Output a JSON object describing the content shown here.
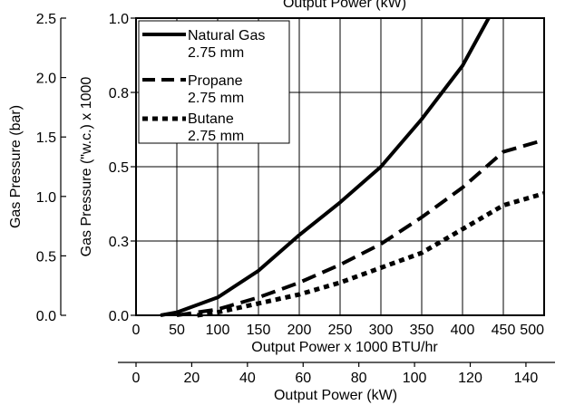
{
  "chart_data": {
    "type": "line",
    "title": "Output Power (kW)",
    "x_unit": "Output Power x 1000 BTU/hr",
    "xlabel_btu": "Output Power x 1000 BTU/hr",
    "xlabel_kw": "Output Power (kW)",
    "ylabel_wc": "Gas Pressure (\"w.c.) x 1000",
    "ylabel_bar": "Gas Pressure (bar)",
    "xlim": [
      0,
      500
    ],
    "ylim": [
      0,
      1.0
    ],
    "x_ticks": [
      "0",
      "50",
      "100",
      "150",
      "200",
      "250",
      "300",
      "350",
      "400",
      "450",
      "500"
    ],
    "kw_ticks": [
      "0",
      "20",
      "40",
      "60",
      "80",
      "100",
      "120",
      "140"
    ],
    "y_ticks_wc": [
      "0.0",
      "0.3",
      "0.5",
      "0.8",
      "1.0"
    ],
    "y_ticks_bar": [
      "0.0",
      "0.5",
      "1.0",
      "1.5",
      "2.0",
      "2.5"
    ],
    "grid": true,
    "legend_position": "top-left",
    "series": [
      {
        "name": "Natural Gas",
        "sub": "2.75 mm",
        "style": "solid",
        "x": [
          30,
          50,
          100,
          150,
          200,
          250,
          300,
          350,
          400,
          432
        ],
        "y": [
          0.0,
          0.01,
          0.06,
          0.15,
          0.27,
          0.38,
          0.5,
          0.66,
          0.84,
          1.0
        ]
      },
      {
        "name": "Propane",
        "sub": "2.75 mm",
        "style": "dash",
        "x": [
          50,
          100,
          150,
          200,
          250,
          300,
          350,
          400,
          450,
          500
        ],
        "y": [
          0.0,
          0.02,
          0.06,
          0.11,
          0.17,
          0.24,
          0.33,
          0.43,
          0.55,
          0.59
        ]
      },
      {
        "name": "Butane",
        "sub": "2.75 mm",
        "style": "dot",
        "x": [
          75,
          100,
          150,
          200,
          250,
          300,
          350,
          400,
          450,
          500
        ],
        "y": [
          0.0,
          0.01,
          0.04,
          0.07,
          0.11,
          0.16,
          0.21,
          0.29,
          0.37,
          0.41
        ]
      }
    ]
  }
}
